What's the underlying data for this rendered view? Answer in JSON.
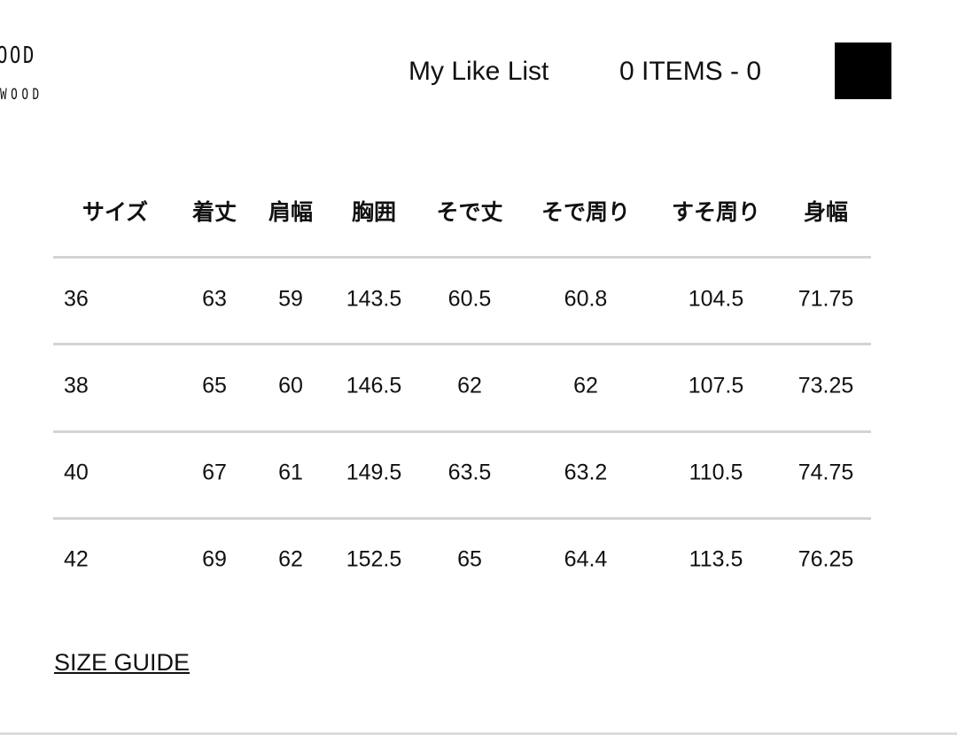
{
  "header": {
    "logo_line1": "OOD",
    "logo_line2": "WOOD",
    "like_list": "My Like List",
    "cart_summary": "0 ITEMS - 0"
  },
  "size_table": {
    "columns": [
      "サイズ",
      "着丈",
      "肩幅",
      "胸囲",
      "そで丈",
      "そで周り",
      "すそ周り",
      "身幅"
    ],
    "rows": [
      [
        "36",
        "63",
        "59",
        "143.5",
        "60.5",
        "60.8",
        "104.5",
        "71.75"
      ],
      [
        "38",
        "65",
        "60",
        "146.5",
        "62",
        "62",
        "107.5",
        "73.25"
      ],
      [
        "40",
        "67",
        "61",
        "149.5",
        "63.5",
        "63.2",
        "110.5",
        "74.75"
      ],
      [
        "42",
        "69",
        "62",
        "152.5",
        "65",
        "64.4",
        "113.5",
        "76.25"
      ]
    ]
  },
  "size_guide_link": "SIZE GUIDE"
}
